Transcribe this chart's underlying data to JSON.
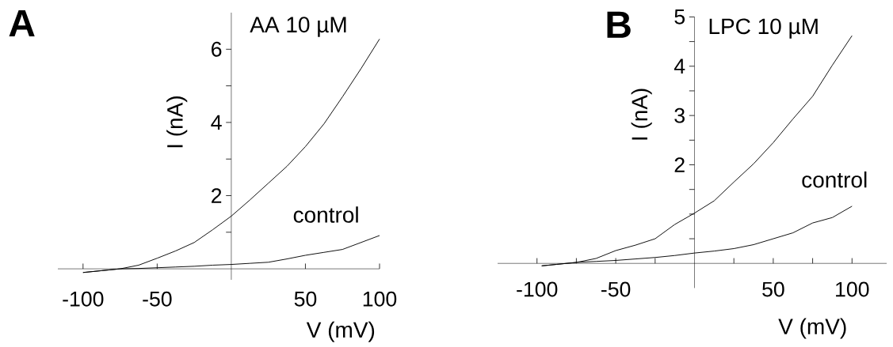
{
  "chart_data": [
    {
      "type": "line",
      "title": "AA 10 µM",
      "xlabel": "V (mV)",
      "ylabel": "I (nA)",
      "annotations": [
        "A",
        "control"
      ],
      "xlim": [
        -117,
        100
      ],
      "ylim": [
        -0.3,
        7
      ],
      "xticks": [
        -100,
        -50,
        50,
        100
      ],
      "yticks": [
        {
          "value": 1,
          "label": null
        },
        2,
        {
          "value": 3,
          "label": null
        },
        4,
        {
          "value": 5,
          "label": null
        },
        6
      ],
      "marker": "none",
      "line_style": "solid",
      "x": [
        -100,
        -87.5,
        -75,
        -62.5,
        -50,
        -37.5,
        -25,
        -12.5,
        0,
        12.5,
        25,
        37.5,
        50,
        62.5,
        75,
        87.5,
        100
      ],
      "series": [
        {
          "color": "#000000",
          "values": [
            -0.1,
            -0.05,
            0,
            0.1,
            0.29,
            0.49,
            0.72,
            1.07,
            1.44,
            1.88,
            2.34,
            2.8,
            3.34,
            3.96,
            4.7,
            5.47,
            6.28
          ]
        },
        {
          "color": "#000000",
          "values": [
            -0.1,
            -0.05,
            0,
            0.01,
            0.03,
            0.05,
            0.07,
            0.1,
            0.12,
            0.15,
            0.18,
            0.27,
            0.37,
            0.45,
            0.53,
            0.72,
            0.91
          ]
        }
      ]
    },
    {
      "type": "line",
      "title": "LPC 10 µM",
      "xlabel": "V (mV)",
      "ylabel": "I (nA)",
      "annotations": [
        "B",
        "control"
      ],
      "xlim": [
        -125,
        122
      ],
      "ylim": [
        -0.5,
        5
      ],
      "xticks": [
        -100,
        {
          "value": -75,
          "label": null
        },
        -50,
        {
          "value": -25,
          "label": null
        },
        {
          "value": 25,
          "label": null
        },
        50,
        {
          "value": 75,
          "label": null
        },
        100
      ],
      "yticks": [
        {
          "value": 0.5,
          "label": null
        },
        {
          "value": 1,
          "label": null
        },
        {
          "value": 1.5,
          "label": null
        },
        2,
        {
          "value": 2.5,
          "label": null
        },
        3,
        {
          "value": 3.5,
          "label": null
        },
        4,
        {
          "value": 4.5,
          "label": null
        },
        5
      ],
      "marker": "none",
      "line_style": "solid",
      "x": [
        -97,
        -87.5,
        -75,
        -62.5,
        -50,
        -37.5,
        -25,
        -12.5,
        0,
        12.5,
        25,
        37.5,
        50,
        62.5,
        75,
        87.5,
        100
      ],
      "series": [
        {
          "color": "#000000",
          "values": [
            -0.05,
            -0.02,
            0.02,
            0.1,
            0.26,
            0.37,
            0.5,
            0.79,
            1.02,
            1.27,
            1.65,
            2.02,
            2.45,
            2.93,
            3.39,
            4.02,
            4.62
          ]
        },
        {
          "color": "#000000",
          "values": [
            -0.05,
            -0.02,
            0.02,
            0.04,
            0.06,
            0.09,
            0.12,
            0.16,
            0.21,
            0.25,
            0.3,
            0.38,
            0.5,
            0.62,
            0.82,
            0.93,
            1.16
          ]
        }
      ]
    }
  ]
}
